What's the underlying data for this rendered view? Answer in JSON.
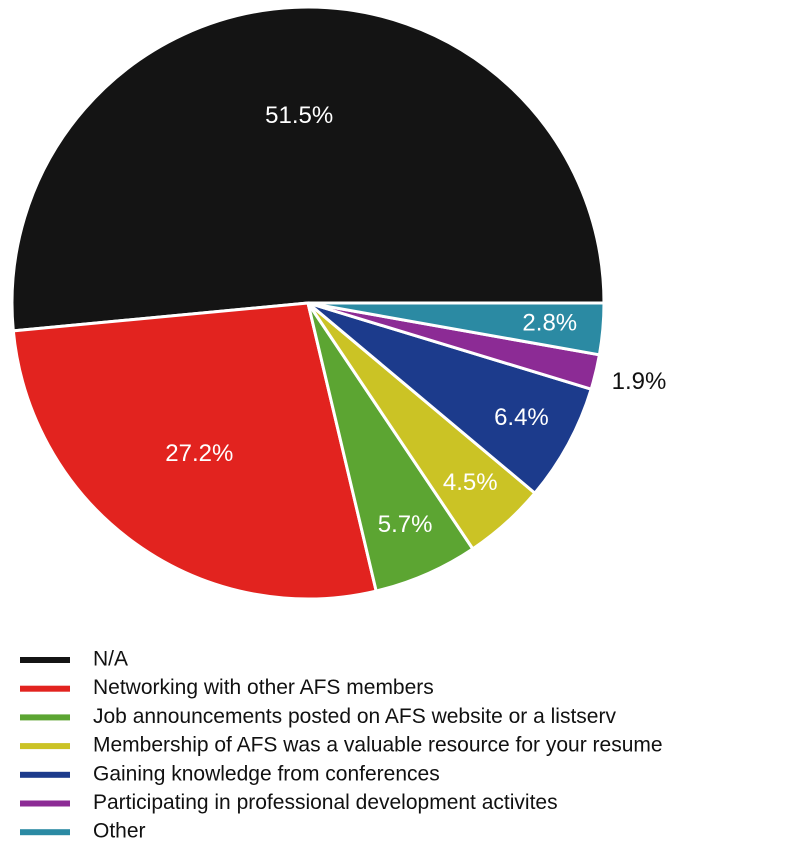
{
  "chart_data": {
    "type": "pie",
    "categories": [
      "N/A",
      "Networking with other AFS members",
      "Job announcements posted on AFS website or a listserv",
      "Membership of AFS was a valuable resource for your resume",
      "Gaining knowledge from conferences",
      "Participating in professional development activites",
      "Other"
    ],
    "values": [
      51.5,
      27.2,
      5.7,
      4.5,
      6.4,
      1.9,
      2.8
    ],
    "value_labels": [
      "51.5%",
      "27.2%",
      "5.7%",
      "4.5%",
      "6.4%",
      "1.9%",
      "2.8%"
    ],
    "colors": [
      "#141414",
      "#e2231f",
      "#5ca532",
      "#cbc325",
      "#1c3b8c",
      "#8c2b95",
      "#2b8aa3"
    ]
  }
}
